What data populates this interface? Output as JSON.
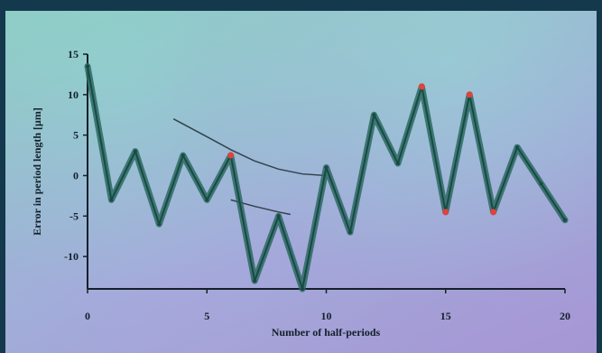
{
  "chart_data": {
    "type": "line",
    "xlabel": "Number of half-periods",
    "ylabel": "Error in period length  [μm]",
    "xlim": [
      0,
      20
    ],
    "ylim": [
      -14,
      15
    ],
    "xticks": [
      0,
      5,
      10,
      15,
      20
    ],
    "yticks": [
      15,
      10,
      5,
      0,
      -5,
      -10
    ],
    "grid": false,
    "series": [
      {
        "x": [
          0,
          1,
          2,
          3,
          4,
          5,
          6,
          7,
          8,
          9,
          10,
          11,
          12,
          13,
          14,
          15,
          16,
          17,
          18,
          19,
          20
        ],
        "values": [
          13.5,
          -3,
          3,
          -6,
          2.5,
          -3,
          2.5,
          -13,
          -5,
          -14,
          1,
          -7,
          7.5,
          1.5,
          11,
          -4.5,
          10,
          -4.5,
          3.5,
          -1,
          -5.5
        ]
      }
    ],
    "highlighted_points": [
      {
        "x": 6,
        "y": 2.5
      },
      {
        "x": 14,
        "y": 11
      },
      {
        "x": 15,
        "y": -4.5
      },
      {
        "x": 16,
        "y": 10
      },
      {
        "x": 17,
        "y": -4.5
      }
    ],
    "trend_curves": [
      {
        "x": [
          3.6,
          5,
          6,
          7,
          8,
          9,
          10
        ],
        "values": [
          7,
          4.8,
          3.2,
          1.8,
          0.8,
          0.2,
          0
        ]
      },
      {
        "x": [
          6,
          7,
          8,
          8.5
        ],
        "values": [
          -3,
          -3.8,
          -4.5,
          -4.8
        ]
      }
    ],
    "colors": {
      "line": "#2c6a62",
      "marker": "#e0423c",
      "axis": "#15202a"
    }
  }
}
